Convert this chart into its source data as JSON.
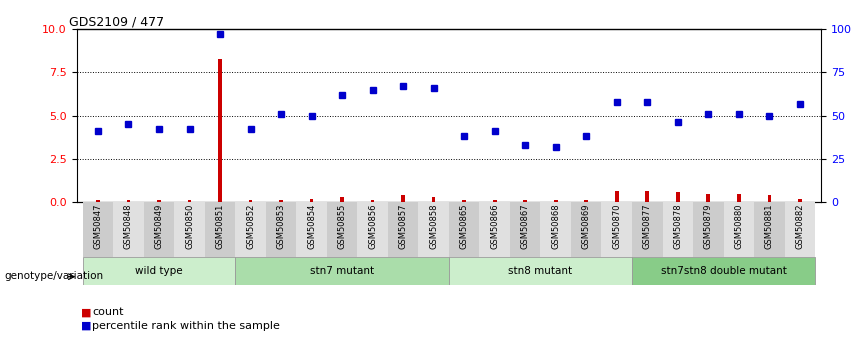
{
  "title": "GDS2109 / 477",
  "samples": [
    "GSM50847",
    "GSM50848",
    "GSM50849",
    "GSM50850",
    "GSM50851",
    "GSM50852",
    "GSM50853",
    "GSM50854",
    "GSM50855",
    "GSM50856",
    "GSM50857",
    "GSM50858",
    "GSM50865",
    "GSM50866",
    "GSM50867",
    "GSM50868",
    "GSM50869",
    "GSM50870",
    "GSM50877",
    "GSM50878",
    "GSM50879",
    "GSM50880",
    "GSM50881",
    "GSM50882"
  ],
  "count_values": [
    0.12,
    0.12,
    0.08,
    0.1,
    8.3,
    0.12,
    0.12,
    0.18,
    0.28,
    0.12,
    0.4,
    0.3,
    0.1,
    0.1,
    0.08,
    0.08,
    0.1,
    0.65,
    0.6,
    0.55,
    0.45,
    0.45,
    0.4,
    0.18
  ],
  "percentile_values": [
    4.1,
    4.5,
    4.2,
    4.2,
    9.75,
    4.2,
    5.1,
    5.0,
    6.2,
    6.5,
    6.7,
    6.6,
    3.8,
    4.1,
    3.3,
    3.2,
    3.8,
    5.8,
    5.8,
    4.6,
    5.1,
    5.1,
    5.0,
    5.7
  ],
  "groups": [
    {
      "label": "wild type",
      "start": 0,
      "end": 5,
      "color": "#cceecc"
    },
    {
      "label": "stn7 mutant",
      "start": 5,
      "end": 12,
      "color": "#aaddaa"
    },
    {
      "label": "stn8 mutant",
      "start": 12,
      "end": 18,
      "color": "#cceecc"
    },
    {
      "label": "stn7stn8 double mutant",
      "start": 18,
      "end": 24,
      "color": "#88cc88"
    }
  ],
  "group_label": "genotype/variation",
  "legend_count_label": "count",
  "legend_percentile_label": "percentile rank within the sample",
  "ylim_left": [
    0,
    10
  ],
  "ylim_right": [
    0,
    100
  ],
  "yticks_left": [
    0,
    2.5,
    5.0,
    7.5,
    10
  ],
  "yticks_right": [
    0,
    25,
    50,
    75,
    100
  ],
  "bar_color": "#cc0000",
  "dot_color": "#0000cc"
}
